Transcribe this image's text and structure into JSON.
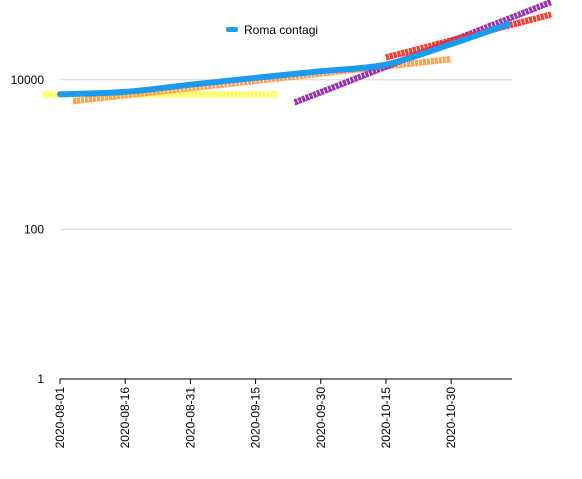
{
  "chart_data": {
    "type": "line",
    "title": "",
    "xlabel": "",
    "ylabel": "",
    "y_scale": "log",
    "ylim": [
      1,
      100000
    ],
    "y_ticks": [
      "1",
      "100",
      "10000"
    ],
    "x_ticks": [
      "2020-08-01",
      "2020-08-16",
      "2020-08-31",
      "2020-09-15",
      "2020-09-30",
      "2020-10-15",
      "2020-10-30"
    ],
    "xlim": [
      "2020-08-01",
      "2020-11-13"
    ],
    "grid": true,
    "legend": {
      "position": "top",
      "label": "Roma contagi",
      "color": "#1a9bf0"
    },
    "series": [
      {
        "name": "Roma contagi",
        "color": "#1a9bf0",
        "x": [
          "2020-08-01",
          "2020-08-16",
          "2020-08-31",
          "2020-09-15",
          "2020-09-30",
          "2020-10-15",
          "2020-10-30",
          "2020-11-12"
        ],
        "y": [
          6400,
          6900,
          8600,
          10600,
          13000,
          16000,
          30000,
          55000
        ]
      }
    ],
    "fit_lines": [
      {
        "color": "#ffff44",
        "x": [
          "2020-07-28",
          "2020-09-20"
        ],
        "y": [
          6400,
          6400
        ]
      },
      {
        "color": "#ff9944",
        "x": [
          "2020-08-04",
          "2020-10-30"
        ],
        "y": [
          5200,
          19000
        ]
      },
      {
        "color": "#8e24aa",
        "x": [
          "2020-09-24",
          "2020-11-22"
        ],
        "y": [
          5000,
          110000
        ]
      },
      {
        "color": "#ff2a1a",
        "x": [
          "2020-10-15",
          "2020-11-22"
        ],
        "y": [
          20000,
          75000
        ]
      }
    ]
  }
}
